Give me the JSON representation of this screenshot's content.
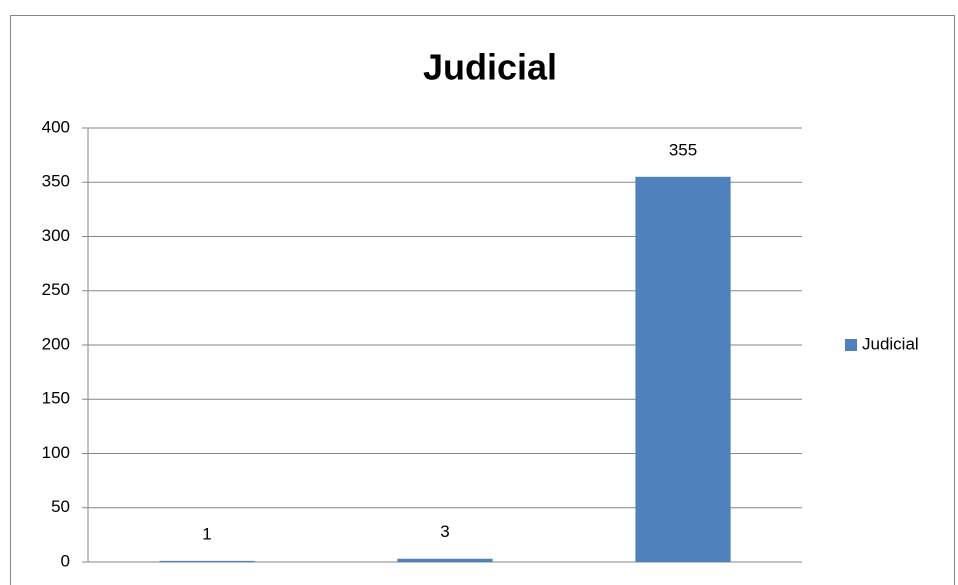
{
  "chart_data": {
    "type": "bar",
    "title": "Judicial",
    "categories": [
      null,
      null,
      null
    ],
    "series": [
      {
        "name": "Judicial",
        "color": "#4f81bd",
        "values": [
          1,
          3,
          355
        ]
      }
    ],
    "ylim": [
      0,
      400
    ],
    "yticks": [
      0,
      50,
      100,
      150,
      200,
      250,
      300,
      350,
      400
    ],
    "grid": true,
    "legend": "right"
  }
}
